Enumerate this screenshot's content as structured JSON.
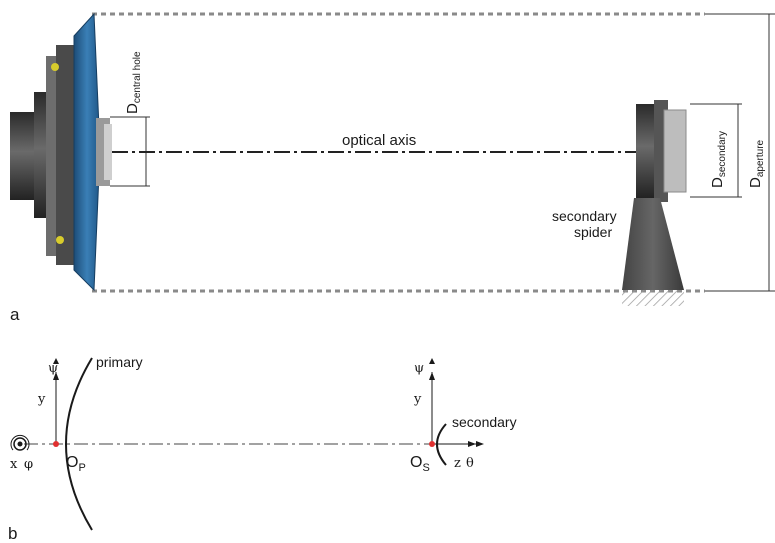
{
  "panel_a": {
    "label": "a",
    "optical_axis": "optical axis",
    "d_central_hole": {
      "main": "D",
      "sub": "central hole"
    },
    "d_secondary": {
      "main": "D",
      "sub": "secondary"
    },
    "d_aperture": {
      "main": "D",
      "sub": "aperture"
    },
    "spider_line1": "secondary",
    "spider_line2": "spider",
    "colors": {
      "primary_mirror": "#2a6496",
      "housing": "#3a3a3a",
      "spider": "#555555",
      "dashed": "#888888"
    }
  },
  "panel_b": {
    "label": "b",
    "primary_label": "primary",
    "secondary_label": "secondary",
    "psi_left": "ψ",
    "y_left": "y",
    "psi_right": "ψ",
    "y_right": "y",
    "x_label": "x",
    "phi_label": "φ",
    "op_main": "O",
    "op_sub": "P",
    "os_main": "O",
    "os_sub": "S",
    "z_label": "z",
    "theta_label": "θ",
    "colors": {
      "origin_dot": "#e03030"
    }
  }
}
